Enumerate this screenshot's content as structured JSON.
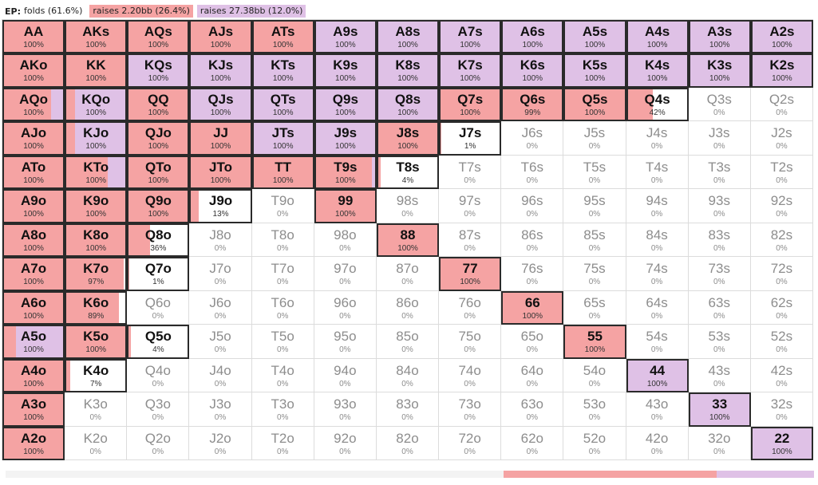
{
  "header": {
    "position": "EP:",
    "folds": "folds (61.6%)",
    "raise1": "raises 2.20bb (26.4%)",
    "raise2": "raises 27.38bb (12.0%)"
  },
  "colors": {
    "raise_small": "#f5a3a3",
    "raise_large": "#dfc1e6",
    "fold": "#ffffff",
    "active_border": "#2a2a2a"
  },
  "summary_bar": {
    "fold": 0.616,
    "raise_small": 0.264,
    "raise_large": 0.12
  },
  "grid": {
    "ranks": [
      "A",
      "K",
      "Q",
      "J",
      "T",
      "9",
      "8",
      "7",
      "6",
      "5",
      "4",
      "3",
      "2"
    ],
    "rows": [
      [
        {
          "h": "AA",
          "p": "100%"
        },
        {
          "h": "AKs",
          "p": "100%"
        },
        {
          "h": "AQs",
          "p": "100%"
        },
        {
          "h": "AJs",
          "p": "100%"
        },
        {
          "h": "ATs",
          "p": "100%"
        },
        {
          "h": "A9s",
          "p": "100%"
        },
        {
          "h": "A8s",
          "p": "100%"
        },
        {
          "h": "A7s",
          "p": "100%"
        },
        {
          "h": "A6s",
          "p": "100%"
        },
        {
          "h": "A5s",
          "p": "100%"
        },
        {
          "h": "A4s",
          "p": "100%"
        },
        {
          "h": "A3s",
          "p": "100%"
        },
        {
          "h": "A2s",
          "p": "100%"
        }
      ],
      [
        {
          "h": "AKo",
          "p": "100%"
        },
        {
          "h": "KK",
          "p": "100%"
        },
        {
          "h": "KQs",
          "p": "100%"
        },
        {
          "h": "KJs",
          "p": "100%"
        },
        {
          "h": "KTs",
          "p": "100%"
        },
        {
          "h": "K9s",
          "p": "100%"
        },
        {
          "h": "K8s",
          "p": "100%"
        },
        {
          "h": "K7s",
          "p": "100%"
        },
        {
          "h": "K6s",
          "p": "100%"
        },
        {
          "h": "K5s",
          "p": "100%"
        },
        {
          "h": "K4s",
          "p": "100%"
        },
        {
          "h": "K3s",
          "p": "100%"
        },
        {
          "h": "K2s",
          "p": "100%"
        }
      ],
      [
        {
          "h": "AQo",
          "p": "100%"
        },
        {
          "h": "KQo",
          "p": "100%"
        },
        {
          "h": "QQ",
          "p": "100%"
        },
        {
          "h": "QJs",
          "p": "100%"
        },
        {
          "h": "QTs",
          "p": "100%"
        },
        {
          "h": "Q9s",
          "p": "100%"
        },
        {
          "h": "Q8s",
          "p": "100%"
        },
        {
          "h": "Q7s",
          "p": "100%"
        },
        {
          "h": "Q6s",
          "p": "99%"
        },
        {
          "h": "Q5s",
          "p": "100%"
        },
        {
          "h": "Q4s",
          "p": "42%"
        },
        {
          "h": "Q3s",
          "p": "0%"
        },
        {
          "h": "Q2s",
          "p": "0%"
        }
      ],
      [
        {
          "h": "AJo",
          "p": "100%"
        },
        {
          "h": "KJo",
          "p": "100%"
        },
        {
          "h": "QJo",
          "p": "100%"
        },
        {
          "h": "JJ",
          "p": "100%"
        },
        {
          "h": "JTs",
          "p": "100%"
        },
        {
          "h": "J9s",
          "p": "100%"
        },
        {
          "h": "J8s",
          "p": "100%"
        },
        {
          "h": "J7s",
          "p": "1%"
        },
        {
          "h": "J6s",
          "p": "0%"
        },
        {
          "h": "J5s",
          "p": "0%"
        },
        {
          "h": "J4s",
          "p": "0%"
        },
        {
          "h": "J3s",
          "p": "0%"
        },
        {
          "h": "J2s",
          "p": "0%"
        }
      ],
      [
        {
          "h": "ATo",
          "p": "100%"
        },
        {
          "h": "KTo",
          "p": "100%"
        },
        {
          "h": "QTo",
          "p": "100%"
        },
        {
          "h": "JTo",
          "p": "100%"
        },
        {
          "h": "TT",
          "p": "100%"
        },
        {
          "h": "T9s",
          "p": "100%"
        },
        {
          "h": "T8s",
          "p": "4%"
        },
        {
          "h": "T7s",
          "p": "0%"
        },
        {
          "h": "T6s",
          "p": "0%"
        },
        {
          "h": "T5s",
          "p": "0%"
        },
        {
          "h": "T4s",
          "p": "0%"
        },
        {
          "h": "T3s",
          "p": "0%"
        },
        {
          "h": "T2s",
          "p": "0%"
        }
      ],
      [
        {
          "h": "A9o",
          "p": "100%"
        },
        {
          "h": "K9o",
          "p": "100%"
        },
        {
          "h": "Q9o",
          "p": "100%"
        },
        {
          "h": "J9o",
          "p": "13%"
        },
        {
          "h": "T9o",
          "p": "0%"
        },
        {
          "h": "99",
          "p": "100%"
        },
        {
          "h": "98s",
          "p": "0%"
        },
        {
          "h": "97s",
          "p": "0%"
        },
        {
          "h": "96s",
          "p": "0%"
        },
        {
          "h": "95s",
          "p": "0%"
        },
        {
          "h": "94s",
          "p": "0%"
        },
        {
          "h": "93s",
          "p": "0%"
        },
        {
          "h": "92s",
          "p": "0%"
        }
      ],
      [
        {
          "h": "A8o",
          "p": "100%"
        },
        {
          "h": "K8o",
          "p": "100%"
        },
        {
          "h": "Q8o",
          "p": "36%"
        },
        {
          "h": "J8o",
          "p": "0%"
        },
        {
          "h": "T8o",
          "p": "0%"
        },
        {
          "h": "98o",
          "p": "0%"
        },
        {
          "h": "88",
          "p": "100%"
        },
        {
          "h": "87s",
          "p": "0%"
        },
        {
          "h": "86s",
          "p": "0%"
        },
        {
          "h": "85s",
          "p": "0%"
        },
        {
          "h": "84s",
          "p": "0%"
        },
        {
          "h": "83s",
          "p": "0%"
        },
        {
          "h": "82s",
          "p": "0%"
        }
      ],
      [
        {
          "h": "A7o",
          "p": "100%"
        },
        {
          "h": "K7o",
          "p": "97%"
        },
        {
          "h": "Q7o",
          "p": "1%"
        },
        {
          "h": "J7o",
          "p": "0%"
        },
        {
          "h": "T7o",
          "p": "0%"
        },
        {
          "h": "97o",
          "p": "0%"
        },
        {
          "h": "87o",
          "p": "0%"
        },
        {
          "h": "77",
          "p": "100%"
        },
        {
          "h": "76s",
          "p": "0%"
        },
        {
          "h": "75s",
          "p": "0%"
        },
        {
          "h": "74s",
          "p": "0%"
        },
        {
          "h": "73s",
          "p": "0%"
        },
        {
          "h": "72s",
          "p": "0%"
        }
      ],
      [
        {
          "h": "A6o",
          "p": "100%"
        },
        {
          "h": "K6o",
          "p": "89%"
        },
        {
          "h": "Q6o",
          "p": "0%"
        },
        {
          "h": "J6o",
          "p": "0%"
        },
        {
          "h": "T6o",
          "p": "0%"
        },
        {
          "h": "96o",
          "p": "0%"
        },
        {
          "h": "86o",
          "p": "0%"
        },
        {
          "h": "76o",
          "p": "0%"
        },
        {
          "h": "66",
          "p": "100%"
        },
        {
          "h": "65s",
          "p": "0%"
        },
        {
          "h": "64s",
          "p": "0%"
        },
        {
          "h": "63s",
          "p": "0%"
        },
        {
          "h": "62s",
          "p": "0%"
        }
      ],
      [
        {
          "h": "A5o",
          "p": "100%"
        },
        {
          "h": "K5o",
          "p": "100%"
        },
        {
          "h": "Q5o",
          "p": "4%"
        },
        {
          "h": "J5o",
          "p": "0%"
        },
        {
          "h": "T5o",
          "p": "0%"
        },
        {
          "h": "95o",
          "p": "0%"
        },
        {
          "h": "85o",
          "p": "0%"
        },
        {
          "h": "75o",
          "p": "0%"
        },
        {
          "h": "65o",
          "p": "0%"
        },
        {
          "h": "55",
          "p": "100%"
        },
        {
          "h": "54s",
          "p": "0%"
        },
        {
          "h": "53s",
          "p": "0%"
        },
        {
          "h": "52s",
          "p": "0%"
        }
      ],
      [
        {
          "h": "A4o",
          "p": "100%"
        },
        {
          "h": "K4o",
          "p": "7%"
        },
        {
          "h": "Q4o",
          "p": "0%"
        },
        {
          "h": "J4o",
          "p": "0%"
        },
        {
          "h": "T4o",
          "p": "0%"
        },
        {
          "h": "94o",
          "p": "0%"
        },
        {
          "h": "84o",
          "p": "0%"
        },
        {
          "h": "74o",
          "p": "0%"
        },
        {
          "h": "64o",
          "p": "0%"
        },
        {
          "h": "54o",
          "p": "0%"
        },
        {
          "h": "44",
          "p": "100%"
        },
        {
          "h": "43s",
          "p": "0%"
        },
        {
          "h": "42s",
          "p": "0%"
        }
      ],
      [
        {
          "h": "A3o",
          "p": "100%"
        },
        {
          "h": "K3o",
          "p": "0%"
        },
        {
          "h": "Q3o",
          "p": "0%"
        },
        {
          "h": "J3o",
          "p": "0%"
        },
        {
          "h": "T3o",
          "p": "0%"
        },
        {
          "h": "93o",
          "p": "0%"
        },
        {
          "h": "83o",
          "p": "0%"
        },
        {
          "h": "73o",
          "p": "0%"
        },
        {
          "h": "63o",
          "p": "0%"
        },
        {
          "h": "53o",
          "p": "0%"
        },
        {
          "h": "43o",
          "p": "0%"
        },
        {
          "h": "33",
          "p": "100%"
        },
        {
          "h": "32s",
          "p": "0%"
        }
      ],
      [
        {
          "h": "A2o",
          "p": "100%"
        },
        {
          "h": "K2o",
          "p": "0%"
        },
        {
          "h": "Q2o",
          "p": "0%"
        },
        {
          "h": "J2o",
          "p": "0%"
        },
        {
          "h": "T2o",
          "p": "0%"
        },
        {
          "h": "92o",
          "p": "0%"
        },
        {
          "h": "82o",
          "p": "0%"
        },
        {
          "h": "72o",
          "p": "0%"
        },
        {
          "h": "62o",
          "p": "0%"
        },
        {
          "h": "52o",
          "p": "0%"
        },
        {
          "h": "42o",
          "p": "0%"
        },
        {
          "h": "32o",
          "p": "0%"
        },
        {
          "h": "22",
          "p": "100%"
        }
      ]
    ],
    "mix": {
      "AA": [
        1,
        0
      ],
      "AKs": [
        1,
        0
      ],
      "AQs": [
        1,
        0
      ],
      "AJs": [
        1,
        0
      ],
      "ATs": [
        1,
        0
      ],
      "A9s": [
        0,
        1
      ],
      "A8s": [
        0,
        1
      ],
      "A7s": [
        0,
        1
      ],
      "A6s": [
        0,
        1
      ],
      "A5s": [
        0,
        1
      ],
      "A4s": [
        0,
        1
      ],
      "A3s": [
        0,
        1
      ],
      "A2s": [
        0,
        1
      ],
      "AKo": [
        1,
        0
      ],
      "KK": [
        1,
        0
      ],
      "KQs": [
        0,
        1
      ],
      "KJs": [
        0,
        1
      ],
      "KTs": [
        0,
        1
      ],
      "K9s": [
        0,
        1
      ],
      "K8s": [
        0,
        1
      ],
      "K7s": [
        0,
        1
      ],
      "K6s": [
        0,
        1
      ],
      "K5s": [
        0,
        1
      ],
      "K4s": [
        0,
        1
      ],
      "K3s": [
        0,
        1
      ],
      "K2s": [
        0,
        1
      ],
      "AQo": [
        0.8,
        0.2
      ],
      "KQo": [
        0.15,
        0.85
      ],
      "QQ": [
        1,
        0
      ],
      "QJs": [
        0,
        1
      ],
      "QTs": [
        0,
        1
      ],
      "Q9s": [
        0,
        1
      ],
      "Q8s": [
        0,
        1
      ],
      "Q7s": [
        1,
        0
      ],
      "Q6s": [
        0.99,
        0
      ],
      "Q5s": [
        1,
        0
      ],
      "Q4s": [
        0.42,
        0
      ],
      "AJo": [
        1,
        0
      ],
      "KJo": [
        0.15,
        0.85
      ],
      "QJo": [
        1,
        0
      ],
      "JJ": [
        1,
        0
      ],
      "JTs": [
        0,
        1
      ],
      "J9s": [
        0,
        1
      ],
      "J8s": [
        1,
        0
      ],
      "J7s": [
        0.01,
        0
      ],
      "ATo": [
        1,
        0
      ],
      "KTo": [
        0.7,
        0.3
      ],
      "QTo": [
        1,
        0
      ],
      "JTo": [
        1,
        0
      ],
      "TT": [
        1,
        0
      ],
      "T9s": [
        0.95,
        0.05
      ],
      "T8s": [
        0.04,
        0
      ],
      "A9o": [
        1,
        0
      ],
      "K9o": [
        1,
        0
      ],
      "Q9o": [
        1,
        0
      ],
      "J9o": [
        0.13,
        0
      ],
      "99": [
        1,
        0
      ],
      "A8o": [
        1,
        0
      ],
      "K8o": [
        1,
        0
      ],
      "Q8o": [
        0.36,
        0
      ],
      "88": [
        1,
        0
      ],
      "A7o": [
        1,
        0
      ],
      "K7o": [
        0.97,
        0
      ],
      "Q7o": [
        0.01,
        0
      ],
      "77": [
        1,
        0
      ],
      "A6o": [
        1,
        0
      ],
      "K6o": [
        0.89,
        0
      ],
      "66": [
        1,
        0
      ],
      "A5o": [
        0.2,
        0.8
      ],
      "K5o": [
        1,
        0
      ],
      "Q5o": [
        0.04,
        0
      ],
      "55": [
        1,
        0
      ],
      "A4o": [
        1,
        0
      ],
      "K4o": [
        0.07,
        0
      ],
      "44": [
        0,
        1
      ],
      "A3o": [
        1,
        0
      ],
      "33": [
        0,
        1
      ],
      "A2o": [
        1,
        0
      ],
      "22": [
        0,
        1
      ]
    }
  }
}
